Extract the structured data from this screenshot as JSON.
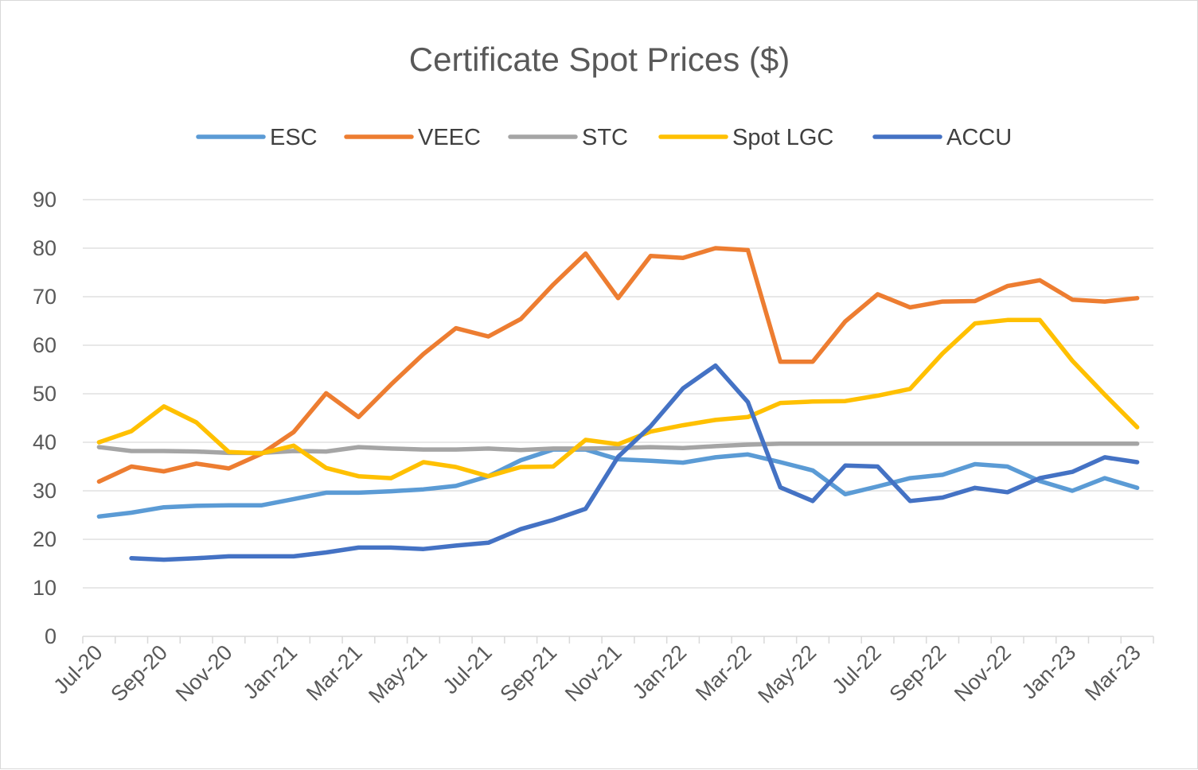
{
  "chart_data": {
    "type": "line",
    "title": "Certificate Spot Prices ($)",
    "xlabel": "",
    "ylabel": "",
    "ylim": [
      0,
      90
    ],
    "yticks": [
      "0",
      "10",
      "20",
      "30",
      "40",
      "50",
      "60",
      "70",
      "80",
      "90"
    ],
    "x_tick_labels": [
      "Jul-20",
      "Sep-20",
      "Nov-20",
      "Jan-21",
      "Mar-21",
      "May-21",
      "Jul-21",
      "Sep-21",
      "Nov-21",
      "Jan-22",
      "Mar-22",
      "May-22",
      "Jul-22",
      "Sep-22",
      "Nov-22",
      "Jan-23",
      "Mar-23"
    ],
    "x_points": 33,
    "legend_position": "top",
    "series": [
      {
        "name": "ESC",
        "color": "#5b9bd5",
        "start": 0,
        "values": [
          24.7,
          25.5,
          26.6,
          26.9,
          27.0,
          27.0,
          28.3,
          29.6,
          29.6,
          29.9,
          30.3,
          31.0,
          33.0,
          36.3,
          38.5,
          38.5,
          36.5,
          36.2,
          35.8,
          36.9,
          37.5,
          35.9,
          34.2,
          29.3,
          30.9,
          32.6,
          33.3,
          35.5,
          35.0,
          32.0,
          30.0,
          32.6,
          30.6
        ]
      },
      {
        "name": "VEEC",
        "color": "#ed7d31",
        "start": 0,
        "values": [
          31.9,
          35.0,
          34.0,
          35.6,
          34.6,
          37.6,
          42.1,
          50.1,
          45.2,
          51.9,
          58.2,
          63.5,
          61.8,
          65.4,
          72.5,
          78.9,
          69.7,
          78.4,
          78.0,
          80.0,
          79.6,
          56.6,
          56.6,
          64.9,
          70.5,
          67.8,
          69.0,
          69.1,
          72.2,
          73.4,
          69.4,
          69.0,
          69.7
        ]
      },
      {
        "name": "STC",
        "color": "#a5a5a5",
        "start": 0,
        "values": [
          39.0,
          38.2,
          38.2,
          38.1,
          37.8,
          37.8,
          38.2,
          38.1,
          39.0,
          38.7,
          38.5,
          38.5,
          38.7,
          38.4,
          38.7,
          38.7,
          38.8,
          39.0,
          38.8,
          39.2,
          39.5,
          39.7,
          39.7,
          39.7,
          39.7,
          39.7,
          39.7,
          39.7,
          39.7,
          39.7,
          39.7,
          39.7,
          39.7
        ]
      },
      {
        "name": "Spot LGC",
        "color": "#ffc000",
        "start": 0,
        "values": [
          40.0,
          42.3,
          47.4,
          44.1,
          38.0,
          37.7,
          39.3,
          34.7,
          33.0,
          32.6,
          35.9,
          34.9,
          33.0,
          34.9,
          35.0,
          40.5,
          39.6,
          42.2,
          43.5,
          44.6,
          45.2,
          48.1,
          48.4,
          48.5,
          49.6,
          51.0,
          58.3,
          64.5,
          65.2,
          65.2,
          56.8,
          49.8,
          43.1
        ]
      },
      {
        "name": "ACCU",
        "color": "#4472c4",
        "start": 1,
        "values": [
          16.1,
          15.8,
          16.1,
          16.5,
          16.5,
          16.5,
          17.3,
          18.3,
          18.3,
          18.0,
          18.7,
          19.3,
          22.1,
          24.0,
          26.3,
          37.0,
          43.3,
          51.1,
          55.8,
          48.3,
          30.7,
          27.9,
          35.2,
          35.0,
          27.9,
          28.6,
          30.6,
          29.7,
          32.6,
          33.9,
          36.9,
          35.9
        ]
      }
    ]
  }
}
